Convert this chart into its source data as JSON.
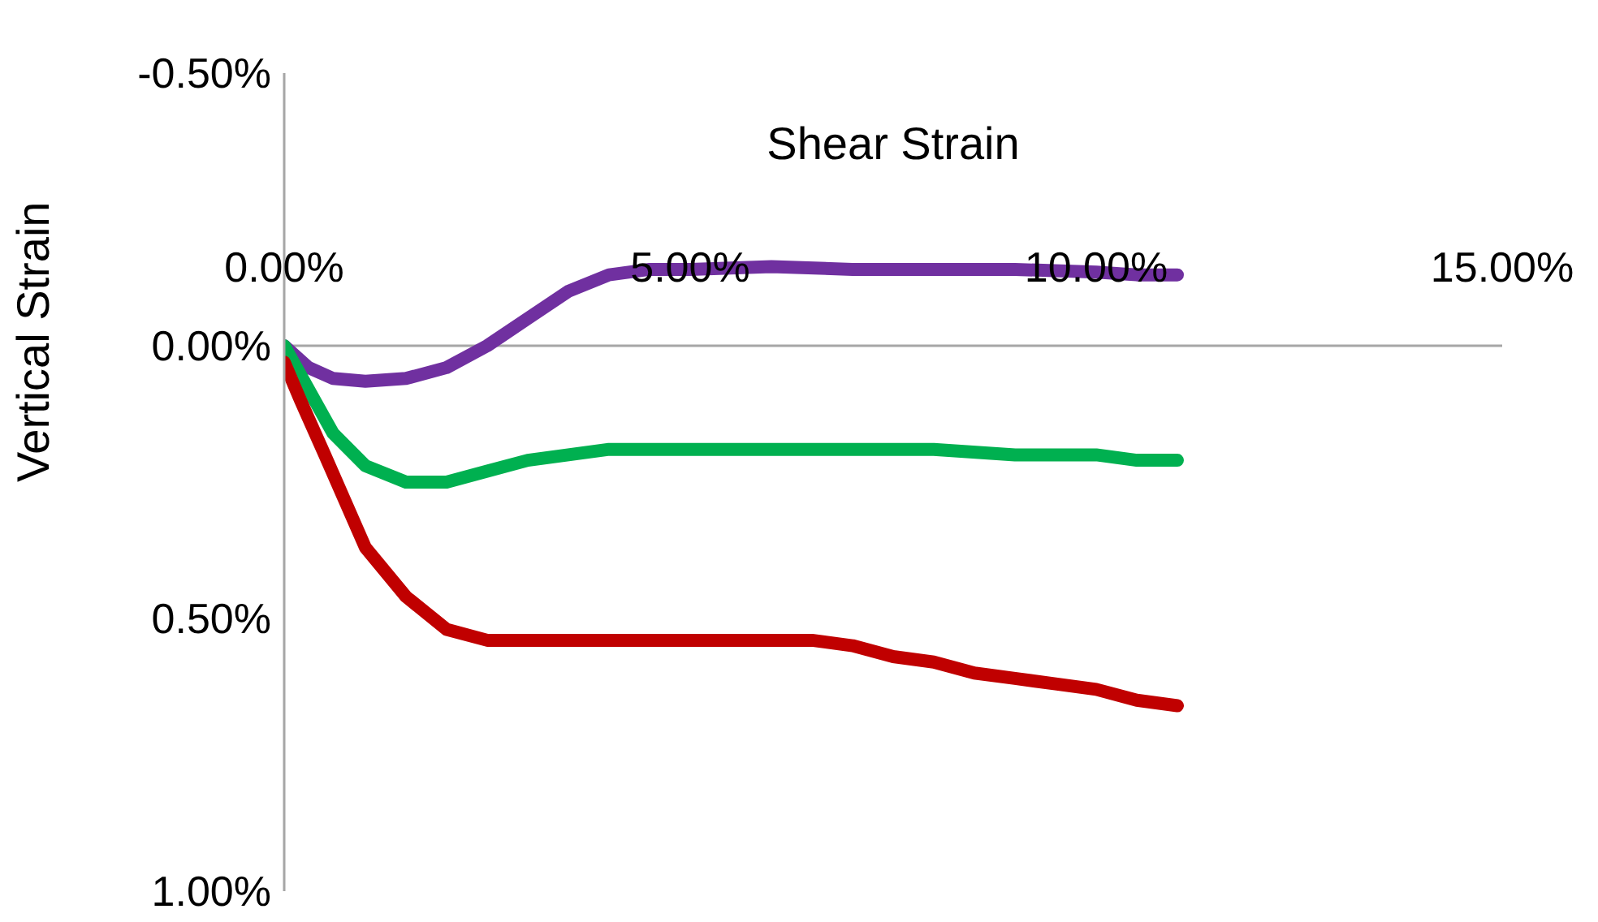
{
  "chart_data": {
    "type": "line",
    "xlabel": "Shear Strain",
    "ylabel": "Vertical Strain",
    "xlim": [
      0,
      15
    ],
    "xticks": [
      {
        "value": 0,
        "label": "0.00%"
      },
      {
        "value": 5,
        "label": "5.00%"
      },
      {
        "value": 10,
        "label": "10.00%"
      },
      {
        "value": 15,
        "label": "15.00%"
      }
    ],
    "ylim": [
      1,
      -0.5
    ],
    "yticks": [
      {
        "value": -0.5,
        "label": "-0.50%"
      },
      {
        "value": 0,
        "label": "0.00%"
      },
      {
        "value": 0.5,
        "label": "0.50%"
      },
      {
        "value": 1,
        "label": "1.00%"
      }
    ],
    "grid": false,
    "marker": "none",
    "line_style": "solid",
    "series": [
      {
        "color": "#7030a0",
        "x": [
          0,
          0.3,
          0.6,
          1,
          1.5,
          2,
          2.5,
          3,
          3.5,
          4,
          4.5,
          5,
          6,
          7,
          8,
          9,
          10,
          10.5,
          11
        ],
        "values": [
          0,
          0.04,
          0.06,
          0.065,
          0.06,
          0.04,
          0,
          -0.05,
          -0.1,
          -0.13,
          -0.14,
          -0.14,
          -0.145,
          -0.14,
          -0.14,
          -0.14,
          -0.135,
          -0.13,
          -0.13
        ]
      },
      {
        "color": "#00b050",
        "x": [
          0,
          0.3,
          0.6,
          1,
          1.5,
          2,
          2.5,
          3,
          3.5,
          4,
          5,
          6,
          7,
          8,
          9,
          10,
          10.5,
          11
        ],
        "values": [
          0,
          0.08,
          0.16,
          0.22,
          0.25,
          0.25,
          0.23,
          0.21,
          0.2,
          0.19,
          0.19,
          0.19,
          0.19,
          0.19,
          0.2,
          0.2,
          0.21,
          0.21
        ]
      },
      {
        "color": "#c00000",
        "x": [
          0,
          0.2,
          0.5,
          1,
          1.5,
          2,
          2.5,
          3,
          4,
          5,
          6,
          6.5,
          7,
          7.5,
          8,
          8.5,
          9,
          9.5,
          10,
          10.5,
          11
        ],
        "values": [
          0.03,
          0.1,
          0.2,
          0.37,
          0.46,
          0.52,
          0.54,
          0.54,
          0.54,
          0.54,
          0.54,
          0.54,
          0.55,
          0.57,
          0.58,
          0.6,
          0.61,
          0.62,
          0.63,
          0.65,
          0.66
        ]
      }
    ]
  }
}
